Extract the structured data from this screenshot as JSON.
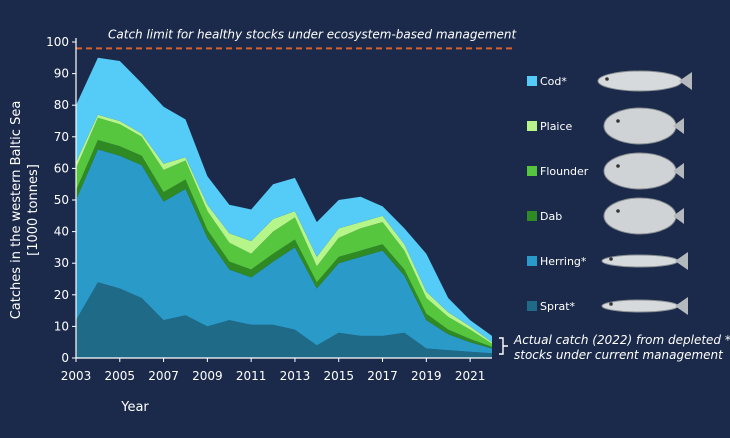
{
  "chart_data": {
    "type": "area",
    "stacked": true,
    "ylabel": "Catches in the western Baltic Sea",
    "ylabel_unit": "[1000 tonnes]",
    "xlabel": "Year",
    "ylim": [
      0,
      100
    ],
    "yticks": [
      "0",
      "10",
      "20",
      "30",
      "40",
      "50",
      "60",
      "70",
      "80",
      "90",
      "100"
    ],
    "xticks": [
      "2003",
      "2005",
      "2007",
      "2009",
      "2011",
      "2013",
      "2015",
      "2017",
      "2019",
      "2021"
    ],
    "x": [
      2003,
      2004,
      2005,
      2006,
      2007,
      2008,
      2009,
      2010,
      2011,
      2012,
      2013,
      2014,
      2015,
      2016,
      2017,
      2018,
      2019,
      2020,
      2021,
      2022
    ],
    "series": [
      {
        "name": "Sprat*",
        "color": "#1f6b87",
        "values": [
          12,
          24,
          22,
          19,
          12,
          13.5,
          10,
          12,
          10.5,
          10.5,
          9,
          4,
          8,
          7,
          7,
          8,
          3,
          2.5,
          2,
          1.5
        ]
      },
      {
        "name": "Herring*",
        "color": "#2a9bc9",
        "values": [
          38,
          42,
          42,
          42,
          37.5,
          40,
          28,
          16,
          15,
          20,
          26,
          18,
          22,
          25,
          27,
          18,
          9,
          5,
          3,
          1.5
        ]
      },
      {
        "name": "Dab",
        "color": "#2f8a23",
        "values": [
          3,
          3,
          3,
          3,
          3,
          3,
          2.5,
          2.5,
          2.5,
          2.5,
          2.5,
          2,
          2,
          2,
          2,
          2,
          2,
          1.5,
          1,
          0.5
        ]
      },
      {
        "name": "Flounder",
        "color": "#57c63f",
        "values": [
          7,
          7,
          7,
          6,
          7,
          6,
          6,
          6,
          5,
          7,
          7,
          5,
          6,
          7,
          7,
          6,
          5,
          4,
          3,
          1
        ]
      },
      {
        "name": "Plaice",
        "color": "#b6f589",
        "values": [
          2,
          1,
          1,
          1,
          2,
          1,
          2,
          3,
          4,
          4,
          2,
          3,
          3,
          2,
          2,
          2,
          2,
          1.5,
          1,
          0.5
        ]
      },
      {
        "name": "Cod*",
        "color": "#55cbf7",
        "values": [
          18,
          18,
          19,
          16,
          18,
          12,
          9,
          9,
          10,
          11,
          10.5,
          11,
          9,
          8,
          3,
          5,
          12,
          4.5,
          2,
          2
        ]
      }
    ],
    "reference_line": {
      "label": "Catch limit for healthy stocks under ecosystem-based management",
      "value": 98,
      "color": "#d9612b"
    },
    "annotation": {
      "line1": "Actual catch (2022) from depleted *",
      "line2": "stocks under current management"
    },
    "legend_position": "right"
  }
}
